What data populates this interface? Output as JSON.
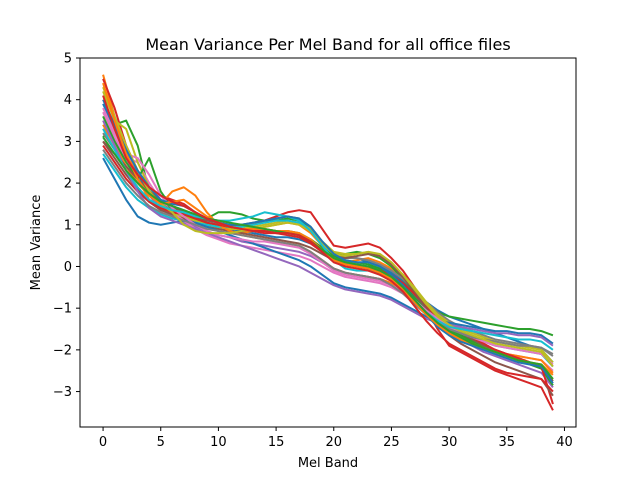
{
  "chart_data": {
    "type": "line",
    "title": "Mean Variance Per Mel Band for all office files",
    "xlabel": "Mel Band",
    "ylabel": "Mean Variance",
    "xlim": [
      -2,
      41
    ],
    "ylim": [
      -3.85,
      5
    ],
    "xticks": [
      0,
      5,
      10,
      15,
      20,
      25,
      30,
      35,
      40
    ],
    "yticks": [
      -3,
      -2,
      -1,
      0,
      1,
      2,
      3,
      4,
      5
    ],
    "ytick_labels": [
      "−3",
      "−2",
      "−1",
      "0",
      "1",
      "2",
      "3",
      "4",
      "5"
    ],
    "grid": false,
    "legend": "none",
    "x": [
      0,
      1,
      2,
      3,
      4,
      5,
      6,
      7,
      8,
      9,
      10,
      11,
      12,
      13,
      14,
      15,
      16,
      17,
      18,
      19,
      20,
      21,
      22,
      23,
      24,
      25,
      26,
      27,
      28,
      29,
      30,
      31,
      32,
      33,
      34,
      35,
      36,
      37,
      38,
      39
    ],
    "series": [
      {
        "color": "#1f77b4",
        "values": [
          3.9,
          3.3,
          2.7,
          2.2,
          1.8,
          1.55,
          1.45,
          1.35,
          1.2,
          1.05,
          0.95,
          0.9,
          0.85,
          0.8,
          0.75,
          0.7,
          0.7,
          0.65,
          0.55,
          0.4,
          0.3,
          0.25,
          0.2,
          0.1,
          0.0,
          -0.15,
          -0.35,
          -0.6,
          -0.85,
          -1.05,
          -1.2,
          -1.3,
          -1.4,
          -1.5,
          -1.6,
          -1.7,
          -1.8,
          -1.9,
          -2.0,
          -2.3
        ]
      },
      {
        "color": "#ff7f0e",
        "values": [
          4.6,
          3.6,
          2.8,
          2.1,
          1.6,
          1.4,
          1.35,
          1.3,
          1.15,
          1.0,
          0.9,
          0.85,
          0.8,
          0.85,
          0.95,
          1.0,
          1.05,
          1.0,
          0.8,
          0.5,
          0.2,
          0.1,
          0.15,
          0.2,
          0.1,
          -0.05,
          -0.3,
          -0.6,
          -0.9,
          -1.2,
          -1.45,
          -1.6,
          -1.75,
          -1.9,
          -2.0,
          -2.1,
          -2.2,
          -2.3,
          -2.4,
          -2.7
        ]
      },
      {
        "color": "#2ca02c",
        "values": [
          3.1,
          3.4,
          3.5,
          2.9,
          1.8,
          1.5,
          1.4,
          1.3,
          1.2,
          1.15,
          1.3,
          1.3,
          1.25,
          1.15,
          1.1,
          1.1,
          1.15,
          1.1,
          0.9,
          0.5,
          0.3,
          0.3,
          0.35,
          0.3,
          0.2,
          0.0,
          -0.3,
          -0.6,
          -0.9,
          -1.1,
          -1.2,
          -1.25,
          -1.3,
          -1.35,
          -1.4,
          -1.45,
          -1.5,
          -1.5,
          -1.55,
          -1.65
        ]
      },
      {
        "color": "#d62728",
        "values": [
          4.5,
          3.8,
          2.9,
          2.3,
          1.9,
          1.7,
          1.6,
          1.5,
          1.3,
          1.15,
          1.05,
          1.0,
          0.95,
          1.0,
          1.1,
          1.2,
          1.3,
          1.35,
          1.3,
          0.9,
          0.5,
          0.45,
          0.5,
          0.55,
          0.45,
          0.2,
          -0.1,
          -0.5,
          -1.0,
          -1.5,
          -1.9,
          -2.05,
          -2.2,
          -2.35,
          -2.5,
          -2.6,
          -2.7,
          -2.8,
          -2.9,
          -3.45
        ]
      },
      {
        "color": "#9467bd",
        "values": [
          3.3,
          3.0,
          2.6,
          2.1,
          1.7,
          1.4,
          1.2,
          1.05,
          0.95,
          0.85,
          0.75,
          0.7,
          0.6,
          0.55,
          0.5,
          0.45,
          0.4,
          0.35,
          0.25,
          0.1,
          -0.05,
          -0.15,
          -0.2,
          -0.25,
          -0.3,
          -0.4,
          -0.55,
          -0.75,
          -1.0,
          -1.3,
          -1.55,
          -1.75,
          -1.9,
          -2.05,
          -2.15,
          -2.25,
          -2.35,
          -2.45,
          -2.55,
          -2.9
        ]
      },
      {
        "color": "#8c564b",
        "values": [
          3.0,
          2.6,
          2.2,
          1.85,
          1.55,
          1.35,
          1.25,
          1.15,
          1.05,
          0.95,
          0.9,
          0.85,
          0.8,
          0.75,
          0.7,
          0.65,
          0.6,
          0.55,
          0.45,
          0.3,
          0.15,
          0.05,
          0.0,
          -0.05,
          -0.1,
          -0.25,
          -0.45,
          -0.7,
          -1.0,
          -1.25,
          -1.45,
          -1.6,
          -1.75,
          -1.9,
          -2.0,
          -2.1,
          -2.2,
          -2.3,
          -2.4,
          -2.75
        ]
      },
      {
        "color": "#e377c2",
        "values": [
          3.7,
          3.1,
          2.6,
          2.5,
          2.0,
          1.6,
          1.3,
          1.1,
          0.9,
          0.75,
          0.65,
          0.55,
          0.5,
          0.45,
          0.4,
          0.35,
          0.3,
          0.25,
          0.15,
          0.0,
          -0.15,
          -0.25,
          -0.3,
          -0.35,
          -0.4,
          -0.5,
          -0.65,
          -0.85,
          -1.1,
          -1.35,
          -1.55,
          -1.7,
          -1.85,
          -1.95,
          -2.05,
          -2.1,
          -2.15,
          -2.2,
          -2.25,
          -2.5
        ]
      },
      {
        "color": "#7f7f7f",
        "values": [
          3.2,
          2.8,
          2.4,
          2.0,
          1.7,
          1.5,
          1.35,
          1.25,
          1.1,
          1.0,
          0.95,
          0.9,
          0.9,
          0.85,
          0.85,
          0.8,
          0.8,
          0.75,
          0.6,
          0.4,
          0.25,
          0.2,
          0.2,
          0.15,
          0.05,
          -0.1,
          -0.3,
          -0.55,
          -0.85,
          -1.1,
          -1.3,
          -1.45,
          -1.55,
          -1.65,
          -1.75,
          -1.8,
          -1.85,
          -1.9,
          -1.95,
          -2.15
        ]
      },
      {
        "color": "#bcbd22",
        "values": [
          4.2,
          3.5,
          3.3,
          2.5,
          1.9,
          1.5,
          1.3,
          1.2,
          1.1,
          1.0,
          0.95,
          0.9,
          0.9,
          0.95,
          1.0,
          1.05,
          1.1,
          1.05,
          0.9,
          0.6,
          0.35,
          0.3,
          0.3,
          0.35,
          0.25,
          0.05,
          -0.2,
          -0.5,
          -0.85,
          -1.15,
          -1.35,
          -1.5,
          -1.6,
          -1.7,
          -1.8,
          -1.85,
          -1.9,
          -1.95,
          -2.0,
          -2.3
        ]
      },
      {
        "color": "#17becf",
        "values": [
          2.7,
          2.3,
          1.9,
          1.6,
          1.4,
          1.25,
          1.15,
          1.1,
          1.05,
          1.0,
          0.95,
          0.95,
          0.95,
          1.0,
          1.05,
          1.1,
          1.1,
          1.05,
          0.85,
          0.55,
          0.25,
          0.1,
          0.05,
          0.0,
          -0.05,
          -0.2,
          -0.45,
          -0.75,
          -1.05,
          -1.3,
          -1.5,
          -1.6,
          -1.7,
          -1.8,
          -1.9,
          -1.95,
          -2.0,
          -2.05,
          -2.1,
          -2.4
        ]
      },
      {
        "color": "#1f77b4",
        "values": [
          2.6,
          2.1,
          1.6,
          1.2,
          1.05,
          1.0,
          1.05,
          1.1,
          1.05,
          0.95,
          0.85,
          0.75,
          0.65,
          0.55,
          0.45,
          0.35,
          0.25,
          0.15,
          0.0,
          -0.2,
          -0.4,
          -0.5,
          -0.55,
          -0.6,
          -0.65,
          -0.75,
          -0.9,
          -1.05,
          -1.2,
          -1.3,
          -1.35,
          -1.4,
          -1.45,
          -1.5,
          -1.55,
          -1.55,
          -1.6,
          -1.6,
          -1.65,
          -1.85
        ]
      },
      {
        "color": "#ff7f0e",
        "values": [
          3.4,
          2.9,
          2.4,
          2.0,
          1.7,
          1.5,
          1.8,
          1.9,
          1.7,
          1.3,
          1.0,
          0.85,
          0.75,
          0.7,
          0.65,
          0.6,
          0.55,
          0.5,
          0.35,
          0.15,
          -0.05,
          -0.15,
          -0.2,
          -0.25,
          -0.3,
          -0.4,
          -0.6,
          -0.85,
          -1.15,
          -1.4,
          -1.6,
          -1.75,
          -1.85,
          -1.95,
          -2.05,
          -2.1,
          -2.15,
          -2.2,
          -2.25,
          -2.55
        ]
      },
      {
        "color": "#2ca02c",
        "values": [
          3.6,
          3.0,
          2.5,
          2.1,
          2.6,
          1.8,
          1.4,
          1.25,
          1.15,
          1.05,
          1.0,
          0.95,
          0.9,
          0.9,
          0.9,
          0.85,
          0.85,
          0.8,
          0.65,
          0.45,
          0.25,
          0.15,
          0.1,
          0.05,
          -0.05,
          -0.2,
          -0.45,
          -0.75,
          -1.05,
          -1.3,
          -1.5,
          -1.65,
          -1.8,
          -1.95,
          -2.05,
          -2.15,
          -2.25,
          -2.35,
          -2.45,
          -2.85
        ]
      },
      {
        "color": "#d62728",
        "values": [
          2.9,
          2.5,
          2.1,
          1.8,
          1.55,
          1.4,
          1.3,
          1.25,
          1.15,
          1.05,
          1.0,
          0.95,
          0.9,
          0.85,
          0.8,
          0.8,
          0.75,
          0.7,
          0.55,
          0.35,
          0.15,
          0.05,
          0.0,
          -0.05,
          -0.1,
          -0.2,
          -0.4,
          -0.65,
          -0.95,
          -1.2,
          -1.4,
          -1.55,
          -1.7,
          -1.85,
          -2.0,
          -2.1,
          -2.2,
          -2.3,
          -2.4,
          -3.3
        ]
      },
      {
        "color": "#9467bd",
        "values": [
          3.5,
          2.9,
          2.3,
          1.8,
          1.4,
          1.2,
          1.1,
          1.0,
          0.9,
          0.8,
          0.7,
          0.6,
          0.5,
          0.4,
          0.3,
          0.2,
          0.1,
          0.0,
          -0.15,
          -0.3,
          -0.45,
          -0.55,
          -0.6,
          -0.65,
          -0.7,
          -0.8,
          -0.95,
          -1.1,
          -1.25,
          -1.35,
          -1.4,
          -1.45,
          -1.5,
          -1.55,
          -1.6,
          -1.6,
          -1.65,
          -1.65,
          -1.7,
          -1.9
        ]
      },
      {
        "color": "#8c564b",
        "values": [
          3.0,
          2.7,
          2.4,
          2.1,
          1.8,
          1.6,
          1.45,
          1.3,
          1.2,
          1.1,
          1.05,
          1.0,
          1.0,
          1.05,
          1.1,
          1.15,
          1.2,
          1.15,
          0.95,
          0.6,
          0.3,
          0.2,
          0.25,
          0.3,
          0.25,
          0.05,
          -0.25,
          -0.6,
          -1.0,
          -1.35,
          -1.65,
          -1.85,
          -2.0,
          -2.15,
          -2.3,
          -2.4,
          -2.5,
          -2.6,
          -2.7,
          -3.1
        ]
      },
      {
        "color": "#e377c2",
        "values": [
          3.8,
          3.2,
          2.7,
          2.6,
          2.2,
          1.7,
          1.4,
          1.2,
          1.0,
          0.85,
          0.75,
          0.7,
          0.65,
          0.6,
          0.6,
          0.55,
          0.5,
          0.45,
          0.3,
          0.1,
          -0.1,
          -0.2,
          -0.25,
          -0.3,
          -0.35,
          -0.45,
          -0.6,
          -0.8,
          -1.05,
          -1.25,
          -1.45,
          -1.6,
          -1.7,
          -1.8,
          -1.9,
          -1.95,
          -2.0,
          -2.05,
          -2.1,
          -2.35
        ]
      },
      {
        "color": "#7f7f7f",
        "values": [
          2.8,
          2.4,
          2.0,
          1.7,
          1.45,
          1.3,
          1.2,
          1.1,
          1.0,
          0.9,
          0.85,
          0.8,
          0.75,
          0.7,
          0.65,
          0.6,
          0.55,
          0.5,
          0.35,
          0.15,
          -0.05,
          -0.15,
          -0.2,
          -0.25,
          -0.3,
          -0.45,
          -0.65,
          -0.9,
          -1.15,
          -1.35,
          -1.5,
          -1.6,
          -1.7,
          -1.75,
          -1.8,
          -1.85,
          -1.9,
          -1.9,
          -1.95,
          -2.1
        ]
      },
      {
        "color": "#bcbd22",
        "values": [
          4.3,
          3.6,
          2.9,
          2.3,
          1.8,
          1.5,
          1.3,
          1.0,
          0.85,
          0.8,
          0.8,
          0.8,
          0.85,
          0.9,
          0.95,
          1.0,
          1.05,
          1.0,
          0.85,
          0.55,
          0.3,
          0.25,
          0.3,
          0.35,
          0.3,
          0.1,
          -0.2,
          -0.55,
          -0.9,
          -1.2,
          -1.4,
          -1.55,
          -1.65,
          -1.75,
          -1.85,
          -1.9,
          -1.95,
          -2.0,
          -2.05,
          -2.4
        ]
      },
      {
        "color": "#17becf",
        "values": [
          3.3,
          2.8,
          2.3,
          1.9,
          1.6,
          1.45,
          1.35,
          1.3,
          1.2,
          1.15,
          1.1,
          1.1,
          1.15,
          1.2,
          1.3,
          1.25,
          1.2,
          1.1,
          0.85,
          0.5,
          0.15,
          -0.05,
          -0.1,
          -0.1,
          -0.15,
          -0.3,
          -0.5,
          -0.8,
          -1.1,
          -1.3,
          -1.45,
          -1.5,
          -1.55,
          -1.6,
          -1.65,
          -1.7,
          -1.75,
          -1.75,
          -1.8,
          -2.0
        ]
      },
      {
        "color": "#1f77b4",
        "values": [
          4.0,
          3.4,
          2.8,
          2.3,
          1.9,
          1.6,
          1.5,
          1.45,
          1.3,
          1.15,
          1.05,
          1.0,
          1.0,
          1.05,
          1.1,
          1.15,
          1.2,
          1.15,
          0.95,
          0.6,
          0.3,
          0.15,
          0.1,
          0.1,
          0.0,
          -0.2,
          -0.45,
          -0.8,
          -1.15,
          -1.45,
          -1.65,
          -1.8,
          -1.9,
          -2.0,
          -2.1,
          -2.2,
          -2.3,
          -2.35,
          -2.4,
          -2.8
        ]
      },
      {
        "color": "#ff7f0e",
        "values": [
          4.4,
          3.5,
          2.7,
          2.1,
          1.7,
          1.5,
          1.55,
          1.6,
          1.4,
          1.2,
          1.05,
          0.95,
          0.9,
          0.9,
          0.9,
          0.85,
          0.85,
          0.8,
          0.65,
          0.4,
          0.15,
          0.05,
          0.0,
          -0.05,
          -0.15,
          -0.3,
          -0.55,
          -0.85,
          -1.15,
          -1.4,
          -1.6,
          -1.75,
          -1.85,
          -1.95,
          -2.05,
          -2.15,
          -2.25,
          -2.3,
          -2.35,
          -2.6
        ]
      },
      {
        "color": "#2ca02c",
        "values": [
          3.1,
          2.7,
          2.3,
          2.0,
          1.75,
          1.55,
          1.45,
          1.35,
          1.25,
          1.15,
          1.1,
          1.05,
          1.0,
          0.95,
          0.9,
          0.85,
          0.8,
          0.75,
          0.6,
          0.4,
          0.2,
          0.1,
          0.05,
          0.0,
          -0.1,
          -0.25,
          -0.5,
          -0.8,
          -1.1,
          -1.35,
          -1.55,
          -1.7,
          -1.85,
          -1.95,
          -2.05,
          -2.15,
          -2.25,
          -2.3,
          -2.35,
          -2.7
        ]
      },
      {
        "color": "#d62728",
        "values": [
          4.1,
          3.3,
          2.6,
          2.2,
          1.9,
          1.7,
          1.55,
          1.45,
          1.3,
          1.15,
          1.05,
          0.95,
          0.9,
          0.85,
          0.85,
          0.8,
          0.8,
          0.75,
          0.6,
          0.35,
          0.1,
          0.0,
          -0.05,
          -0.1,
          -0.2,
          -0.35,
          -0.6,
          -0.95,
          -1.3,
          -1.6,
          -1.85,
          -2.0,
          -2.15,
          -2.3,
          -2.45,
          -2.55,
          -2.6,
          -2.65,
          -2.7,
          -3.0
        ]
      }
    ]
  }
}
